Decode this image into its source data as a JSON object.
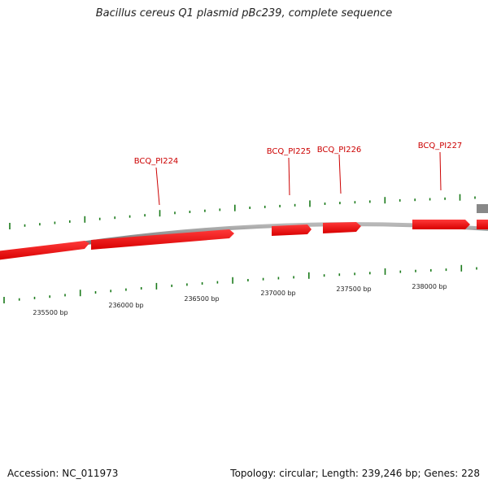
{
  "title": "Bacillus cereus Q1 plasmid pBc239, complete sequence",
  "footer": {
    "accession": "Accession: NC_011973",
    "summary": "Topology: circular; Length: 239,246 bp; Genes: 228"
  },
  "colors": {
    "gene": "#ff0000",
    "gene_label": "#cc0000",
    "tick": "#1a7a1a",
    "backbone": "#8a8a8a"
  },
  "genes": [
    {
      "name": "BCQ_PI224",
      "label": "BCQ_PI224"
    },
    {
      "name": "BCQ_PI225",
      "label": "BCQ_PI225"
    },
    {
      "name": "BCQ_PI226",
      "label": "BCQ_PI226"
    },
    {
      "name": "BCQ_PI227",
      "label": "BCQ_PI227"
    }
  ],
  "scale_labels": [
    "235500 bp",
    "236000 bp",
    "236500 bp",
    "237000 bp",
    "237500 bp",
    "238000 bp"
  ]
}
